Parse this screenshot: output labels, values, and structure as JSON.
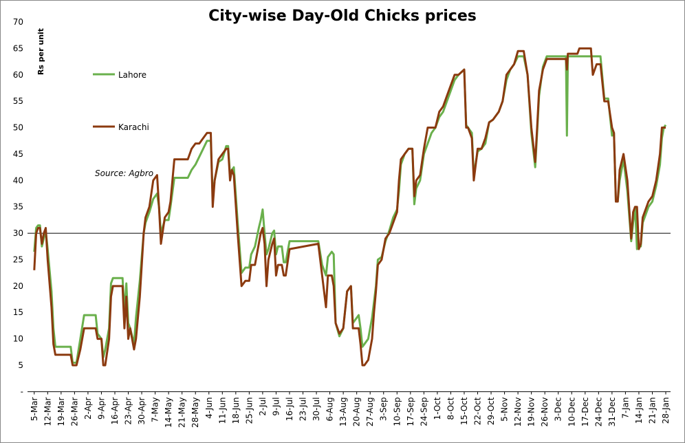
{
  "chart_data": {
    "type": "line",
    "title": "City-wise Day-Old Chicks prices",
    "y_label": "Rs per unit",
    "source": "Source: Agbro",
    "reference_line": 30,
    "xlim": [
      -3.5,
      331.5
    ],
    "ylim": [
      0,
      70
    ],
    "yticks": [
      {
        "value": 0,
        "label": "-"
      },
      5,
      10,
      15,
      20,
      25,
      30,
      35,
      40,
      45,
      50,
      55,
      60,
      65,
      70
    ],
    "xticks": [
      {
        "value": 0,
        "label": "5-Mar"
      },
      {
        "value": 7,
        "label": "12-Mar"
      },
      {
        "value": 14,
        "label": "19-Mar"
      },
      {
        "value": 21,
        "label": "26-Mar"
      },
      {
        "value": 28,
        "label": "2-Apr"
      },
      {
        "value": 35,
        "label": "9-Apr"
      },
      {
        "value": 42,
        "label": "16-Apr"
      },
      {
        "value": 49,
        "label": "23-Apr"
      },
      {
        "value": 56,
        "label": "30-Apr"
      },
      {
        "value": 63,
        "label": "7-May"
      },
      {
        "value": 70,
        "label": "14-May"
      },
      {
        "value": 77,
        "label": "21-May"
      },
      {
        "value": 84,
        "label": "28-May"
      },
      {
        "value": 91,
        "label": "4-Jun"
      },
      {
        "value": 98,
        "label": "11-Jun"
      },
      {
        "value": 105,
        "label": "18-Jun"
      },
      {
        "value": 112,
        "label": "25-Jun"
      },
      {
        "value": 119,
        "label": "2-Jul"
      },
      {
        "value": 126,
        "label": "9-Jul"
      },
      {
        "value": 133,
        "label": "16-Jul"
      },
      {
        "value": 140,
        "label": "23-Jul"
      },
      {
        "value": 147,
        "label": "30-Jul"
      },
      {
        "value": 154,
        "label": "6-Aug"
      },
      {
        "value": 161,
        "label": "13-Aug"
      },
      {
        "value": 168,
        "label": "20-Aug"
      },
      {
        "value": 175,
        "label": "27-Aug"
      },
      {
        "value": 182,
        "label": "3-Sep"
      },
      {
        "value": 189,
        "label": "10-Sep"
      },
      {
        "value": 196,
        "label": "17-Sep"
      },
      {
        "value": 203,
        "label": "24-Sep"
      },
      {
        "value": 210,
        "label": "1-Oct"
      },
      {
        "value": 217,
        "label": "8-Oct"
      },
      {
        "value": 224,
        "label": "15-Oct"
      },
      {
        "value": 231,
        "label": "22-Oct"
      },
      {
        "value": 238,
        "label": "29-Oct"
      },
      {
        "value": 245,
        "label": "5-Nov"
      },
      {
        "value": 252,
        "label": "12-Nov"
      },
      {
        "value": 259,
        "label": "19-Nov"
      },
      {
        "value": 266,
        "label": "26-Nov"
      },
      {
        "value": 273,
        "label": "3-Dec"
      },
      {
        "value": 280,
        "label": "10-Dec"
      },
      {
        "value": 287,
        "label": "17-Dec"
      },
      {
        "value": 294,
        "label": "24-Dec"
      },
      {
        "value": 301,
        "label": "31-Dec"
      },
      {
        "value": 308,
        "label": "7-Jan"
      },
      {
        "value": 315,
        "label": "14-Jan"
      },
      {
        "value": 322,
        "label": "21-Jan"
      },
      {
        "value": 329,
        "label": "28-Jan"
      }
    ],
    "x": [
      0,
      1,
      2,
      3,
      4,
      5,
      6,
      7,
      9,
      10,
      11,
      19,
      20,
      22,
      24,
      26,
      32,
      33,
      35,
      36,
      37,
      39,
      40,
      41,
      46,
      47,
      48,
      49,
      50,
      52,
      53,
      55,
      57,
      58,
      60,
      62,
      64,
      65,
      66,
      68,
      70,
      71,
      73,
      80,
      82,
      84,
      86,
      88,
      90,
      92,
      93,
      94,
      96,
      98,
      100,
      101,
      102,
      103,
      104,
      106,
      108,
      110,
      112,
      113,
      115,
      117,
      118,
      119,
      120,
      121,
      122,
      124,
      125,
      126,
      127,
      129,
      130,
      131,
      133,
      148,
      150,
      152,
      153,
      155,
      156,
      157,
      159,
      161,
      163,
      165,
      166,
      169,
      170,
      171,
      172,
      174,
      176,
      177,
      178,
      179,
      181,
      183,
      185,
      187,
      189,
      190,
      191,
      193,
      195,
      197,
      198,
      199,
      201,
      203,
      205,
      207,
      209,
      211,
      213,
      215,
      217,
      219,
      221,
      224,
      225,
      226,
      228,
      229,
      231,
      233,
      235,
      237,
      239,
      242,
      244,
      246,
      248,
      250,
      252,
      255,
      257,
      259,
      261,
      262,
      263,
      265,
      267,
      272,
      275,
      277,
      277.5,
      278,
      283,
      284,
      290,
      291,
      293,
      295,
      297,
      299,
      301,
      302,
      303,
      304,
      305,
      307,
      309,
      311,
      312,
      313,
      314,
      315,
      316,
      317,
      318,
      320,
      322,
      324,
      326,
      327,
      328,
      329
    ],
    "series": [
      {
        "name": "Lahore",
        "color": "#6ab04c",
        "values": [
          26.5,
          31,
          31.5,
          31.5,
          27.5,
          29,
          30.5,
          27,
          19,
          12,
          8.5,
          8.5,
          5.5,
          5.5,
          10,
          14.5,
          14.5,
          11,
          10,
          6.5,
          8,
          12,
          20.5,
          21.5,
          21.5,
          15,
          20.5,
          13,
          12,
          9,
          14,
          21,
          30,
          32,
          34,
          36.5,
          37.5,
          35,
          30,
          32.5,
          32.5,
          35,
          40.5,
          40.5,
          42,
          43,
          44.5,
          46,
          47.5,
          47.5,
          37,
          40,
          43.5,
          44,
          46.5,
          46.5,
          41,
          42,
          42.5,
          32,
          22.5,
          23.5,
          23.5,
          26,
          27.5,
          31,
          32.5,
          34.5,
          30,
          26,
          27,
          30,
          30.5,
          26,
          27.5,
          27.5,
          24.5,
          24.5,
          28.5,
          28.5,
          24,
          22,
          25.5,
          26.5,
          26,
          13,
          10.5,
          12,
          19,
          20,
          13,
          14.5,
          12,
          8.5,
          9,
          10,
          14,
          17,
          20,
          25,
          25.5,
          28.5,
          30.5,
          33,
          34.5,
          38,
          43,
          45,
          46,
          46,
          35.5,
          38.5,
          40,
          45,
          47,
          49,
          50,
          52,
          53,
          55,
          57,
          59,
          60,
          61,
          50.5,
          50,
          49,
          41,
          45.5,
          46,
          47,
          51,
          51.5,
          53,
          55,
          59,
          61,
          62,
          63.5,
          63.5,
          60,
          49,
          42.5,
          49,
          56,
          61.5,
          63.5,
          63.5,
          63.5,
          63.5,
          48.5,
          63.5,
          63.5,
          63.5,
          63.5,
          63.5,
          63.5,
          63.5,
          55.5,
          55.5,
          48.5,
          49,
          36,
          36,
          40,
          44,
          38,
          28.5,
          32,
          35,
          27,
          27.5,
          27.5,
          32,
          33,
          35,
          36,
          39,
          43,
          48,
          50,
          50.5
        ]
      },
      {
        "name": "Karachi",
        "color": "#8b3a0f",
        "values": [
          23,
          30,
          31,
          31,
          28,
          30,
          31,
          25,
          16,
          9,
          7,
          7,
          5,
          5,
          8,
          12,
          12,
          10,
          10,
          5,
          5,
          10,
          18,
          20,
          20,
          12,
          18,
          10,
          12,
          8,
          10,
          18,
          30,
          33,
          35,
          40,
          41,
          35,
          28,
          33,
          34,
          36,
          44,
          44,
          46,
          47,
          47,
          48,
          49,
          49,
          35,
          40,
          44,
          45,
          46,
          46,
          40,
          42,
          41,
          30,
          20,
          21,
          21,
          24,
          24,
          28,
          30,
          31,
          28,
          20,
          25,
          28,
          29,
          22,
          24,
          24,
          22,
          22,
          27,
          28,
          22,
          16,
          22,
          22,
          20,
          13,
          11,
          12,
          19,
          20,
          12,
          12,
          9,
          5,
          5,
          6,
          10,
          15,
          19,
          24,
          25,
          29,
          30,
          32,
          34,
          40,
          44,
          45,
          46,
          46,
          37,
          40,
          41,
          46,
          50,
          50,
          50,
          53,
          54,
          56,
          58,
          60,
          60,
          61,
          50,
          50,
          48,
          40,
          46,
          46,
          48,
          51,
          51.5,
          53,
          55,
          60,
          61,
          62,
          64.5,
          64.5,
          60,
          50,
          43.5,
          50,
          57,
          61,
          63,
          63,
          63,
          63,
          61,
          64,
          64,
          65,
          65,
          60,
          62,
          62,
          55,
          55,
          50,
          49,
          36,
          36,
          42,
          45,
          40,
          29,
          34,
          35,
          35,
          27,
          28,
          33,
          34,
          36,
          37,
          40,
          45,
          50,
          50,
          50
        ]
      }
    ]
  }
}
